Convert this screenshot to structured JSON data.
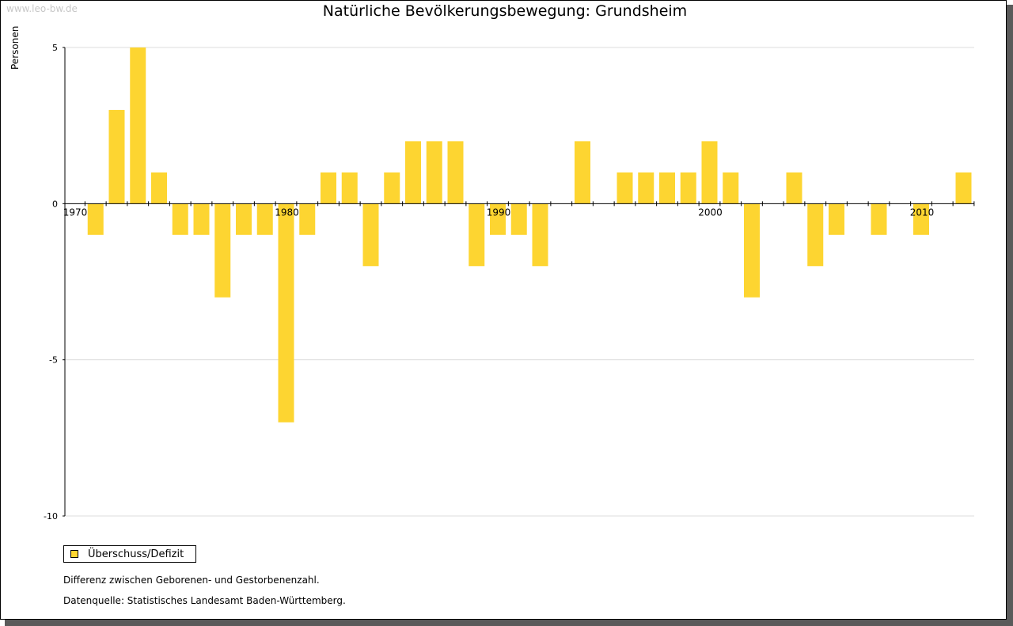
{
  "watermark": "www.leo-bw.de",
  "footnote": "Differenz zwischen Geborenen- und Gestorbenenzahl.",
  "source": "Datenquelle: Statistisches Landesamt Baden-Württemberg.",
  "colors": {
    "bar": "#fdd531",
    "grid": "#dcdcdc",
    "axis": "#000000"
  },
  "chart_data": {
    "type": "bar",
    "title": "Natürliche Bevölkerungsbewegung: Grundsheim",
    "ylabel": "Personen",
    "xlabel": "",
    "ylim": [
      -10,
      5
    ],
    "yticks": [
      5,
      0,
      -5,
      -10
    ],
    "xlim": [
      1970,
      2012
    ],
    "xticks": [
      1970,
      1980,
      1990,
      2000,
      2010
    ],
    "grid": true,
    "legend_position": "bottom-left",
    "series": [
      {
        "name": "Überschuss/Defizit",
        "x": [
          1971,
          1972,
          1973,
          1974,
          1975,
          1976,
          1977,
          1978,
          1979,
          1980,
          1981,
          1982,
          1983,
          1984,
          1985,
          1986,
          1987,
          1988,
          1989,
          1990,
          1991,
          1992,
          1993,
          1994,
          1995,
          1996,
          1997,
          1998,
          1999,
          2000,
          2001,
          2002,
          2003,
          2004,
          2005,
          2006,
          2007,
          2008,
          2009,
          2010,
          2011,
          2012
        ],
        "values": [
          -1,
          3,
          5,
          1,
          -1,
          -1,
          -3,
          -1,
          -1,
          -7,
          -1,
          1,
          1,
          -2,
          1,
          2,
          2,
          2,
          -2,
          -1,
          -1,
          -2,
          0,
          2,
          0,
          1,
          1,
          1,
          1,
          2,
          1,
          -3,
          0,
          1,
          -2,
          -1,
          0,
          -1,
          0,
          -1,
          0,
          1
        ]
      }
    ]
  }
}
